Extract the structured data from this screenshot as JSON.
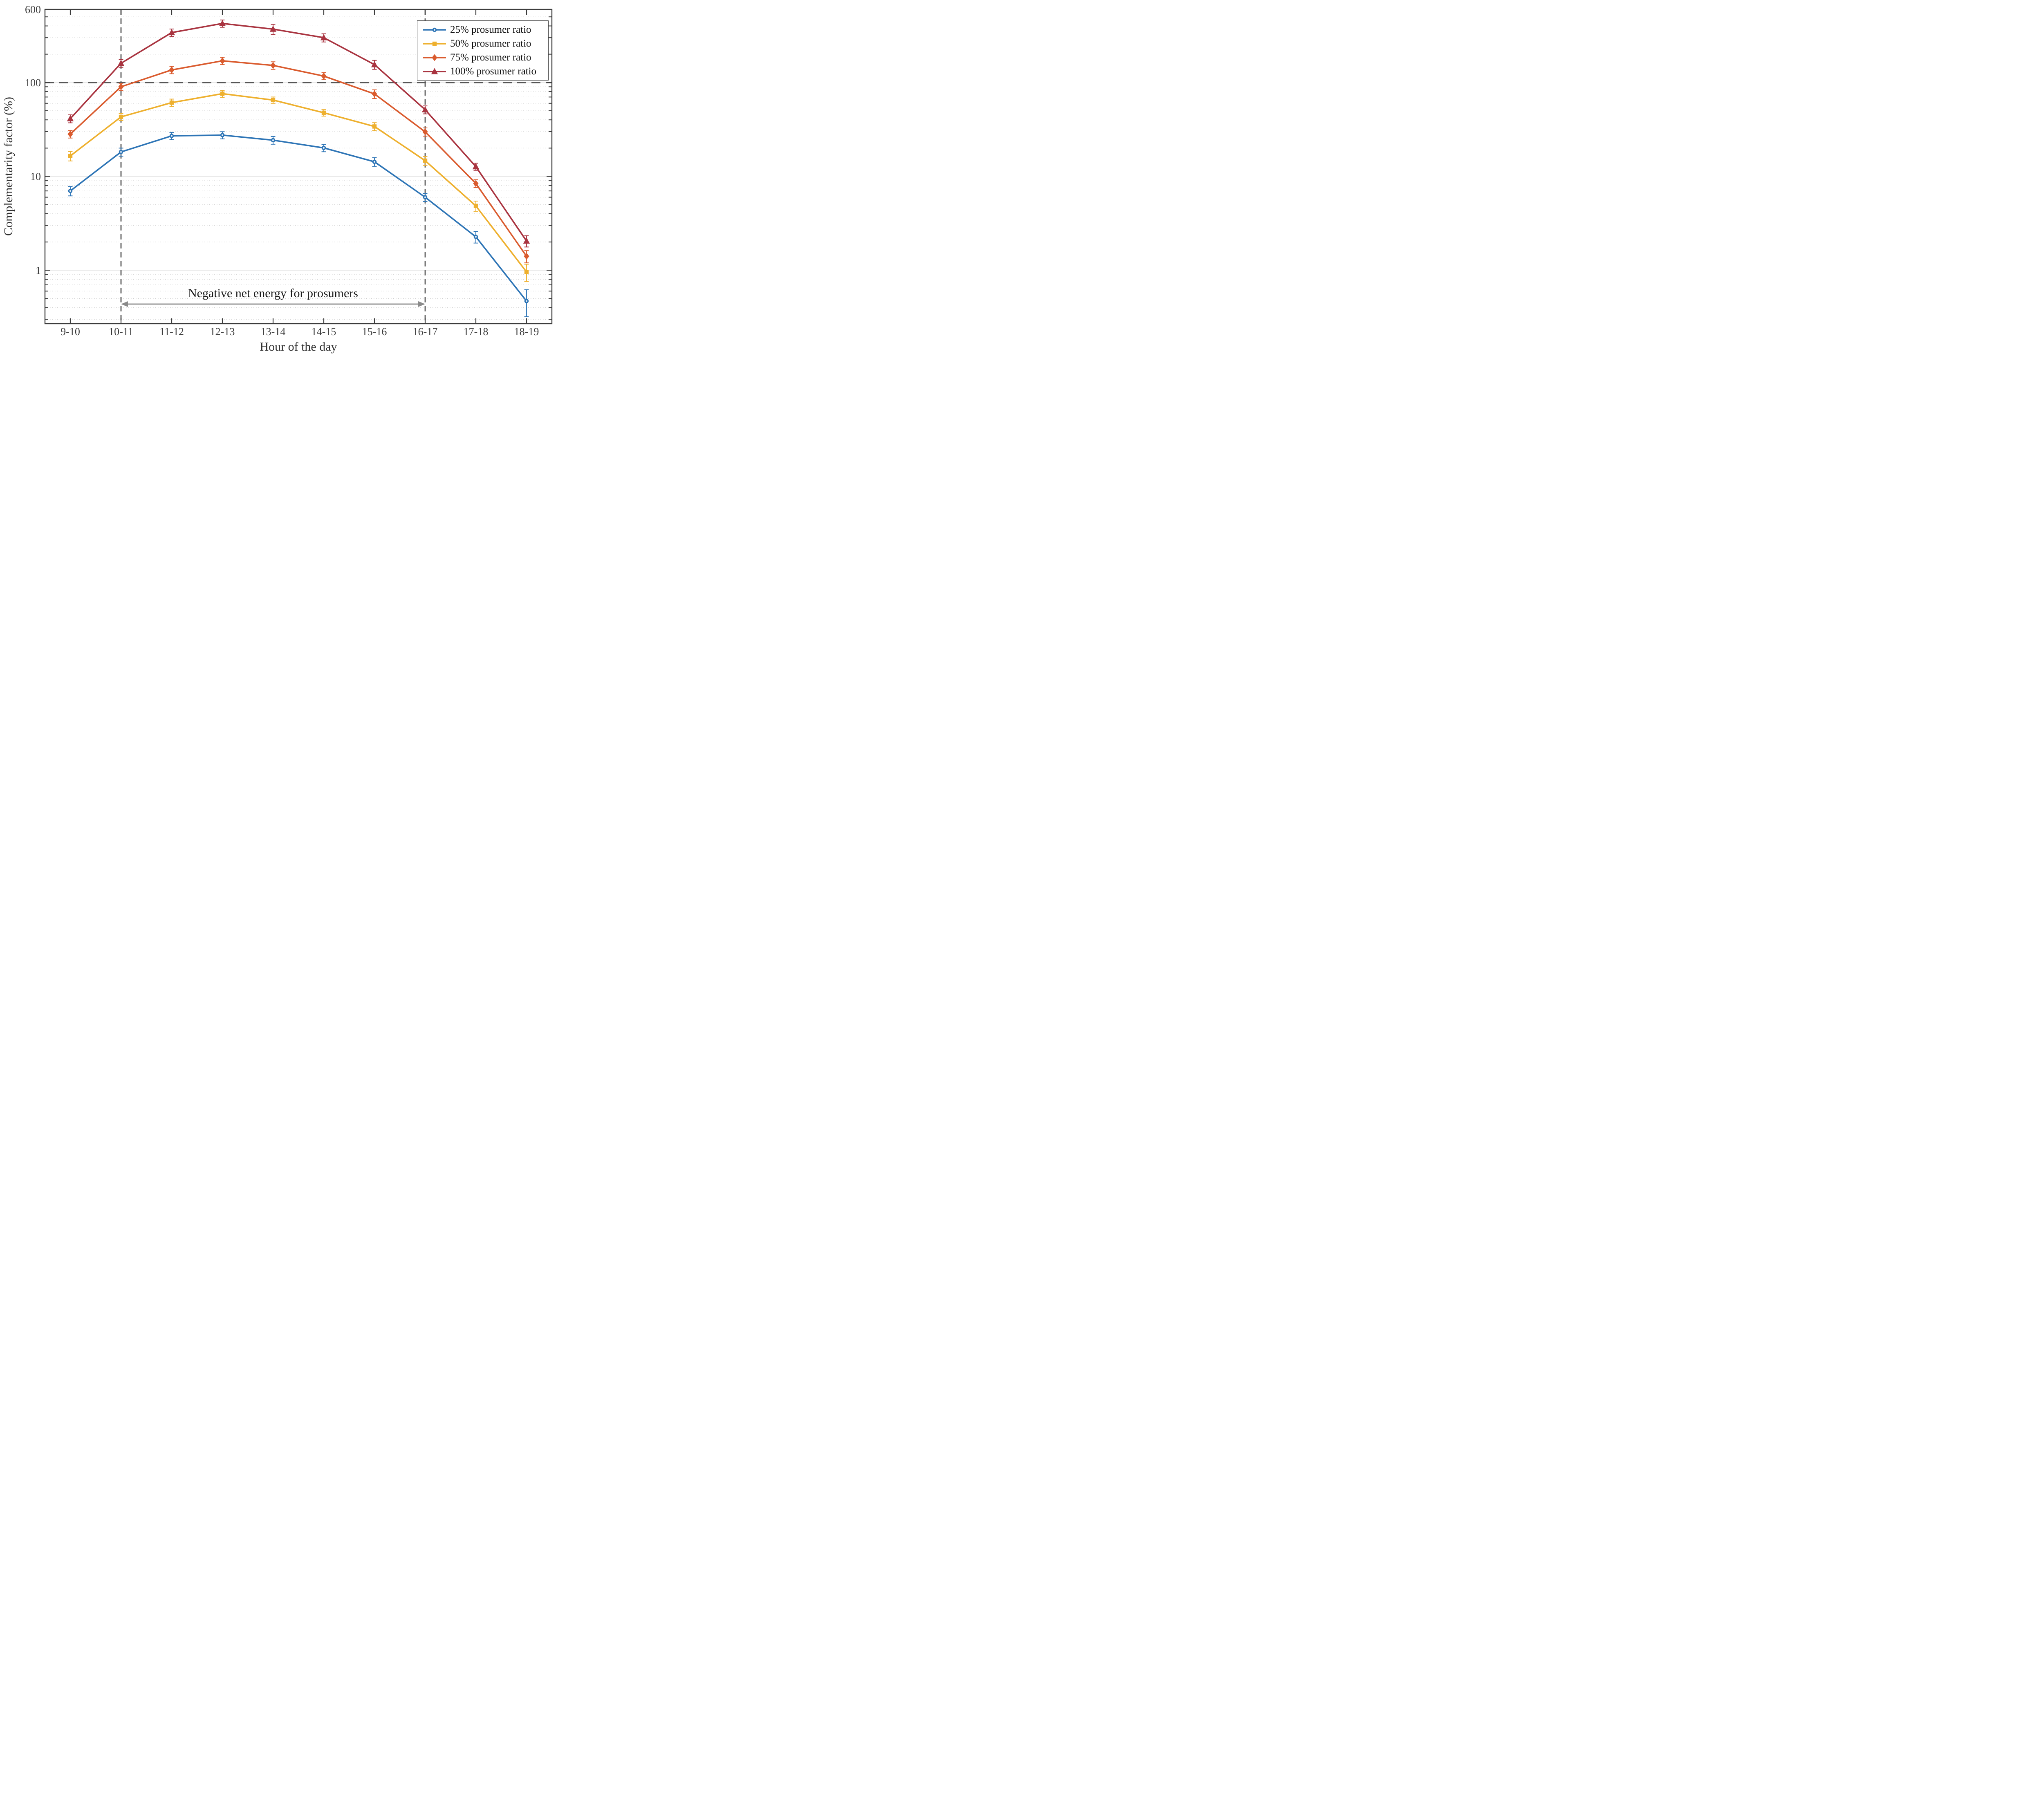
{
  "chart_data": {
    "type": "line",
    "title": "",
    "xlabel": "Hour of the day",
    "ylabel": "Complementarity factor (%)",
    "yscale": "log",
    "ylim": [
      0.27,
      600
    ],
    "ytick_values": [
      600,
      100,
      10,
      1
    ],
    "ytick_labels": [
      "600",
      "100",
      "10",
      "1"
    ],
    "x": [
      "9-10",
      "10-11",
      "11-12",
      "12-13",
      "13-14",
      "14-15",
      "15-16",
      "16-17",
      "17-18",
      "18-19"
    ],
    "series": [
      {
        "label": "25% prosumer ratio",
        "marker": "circle",
        "color": "#2E75B6",
        "values": [
          7.0,
          18.2,
          27.0,
          27.5,
          24.3,
          20.1,
          14.3,
          6.0,
          2.27,
          0.47
        ],
        "errors": [
          0.8,
          1.8,
          2.4,
          2.4,
          2.3,
          1.8,
          1.5,
          0.6,
          0.32,
          0.15
        ]
      },
      {
        "label": "50% prosumer ratio",
        "marker": "square",
        "color": "#EEB02E",
        "values": [
          16.5,
          43.0,
          61.0,
          76.0,
          65.0,
          47.6,
          34.0,
          14.7,
          4.85,
          0.96
        ],
        "errors": [
          1.9,
          3.7,
          5.5,
          6.5,
          5.0,
          3.8,
          3.3,
          1.6,
          0.6,
          0.2
        ]
      },
      {
        "label": "75% prosumer ratio",
        "marker": "diamond",
        "color": "#DA5B2E",
        "values": [
          28.2,
          90.0,
          136.0,
          170.0,
          152.0,
          117.0,
          75.5,
          29.8,
          8.4,
          1.41
        ],
        "errors": [
          2.6,
          8.0,
          12.0,
          15.0,
          14.0,
          10.0,
          8.0,
          3.0,
          0.8,
          0.21
        ]
      },
      {
        "label": "100% prosumer ratio",
        "marker": "triangle",
        "color": "#A93440",
        "values": [
          41.2,
          160.0,
          340.0,
          425.0,
          370.0,
          300.0,
          155.0,
          51.3,
          12.7,
          2.05
        ],
        "errors": [
          4.0,
          15.0,
          31.0,
          38.0,
          46.0,
          30.0,
          17.0,
          5.0,
          1.1,
          0.28
        ]
      }
    ],
    "reference_lines": {
      "horizontal_dashed_value": 100,
      "vertical_dashed_categories": [
        "10-11",
        "16-17"
      ]
    },
    "annotation": {
      "text": "Negative net energy for prosumers"
    },
    "legend_position": "top-right",
    "grid": {
      "horizontal_major_solid": true,
      "horizontal_minor_dotted": true,
      "vertical": false
    },
    "colors": {
      "axis_frame": "#3C3C3C",
      "tick_text": "#3C3C3C",
      "grid_major": "#E2E2E2",
      "grid_minor": "#C9C9C9",
      "dashed_reference": "#555555",
      "annotation_arrow": "#8A8A8A",
      "annotation_text": "#1A1A1A",
      "legend_border": "#3C3C3C",
      "background": "#FFFFFF"
    }
  }
}
